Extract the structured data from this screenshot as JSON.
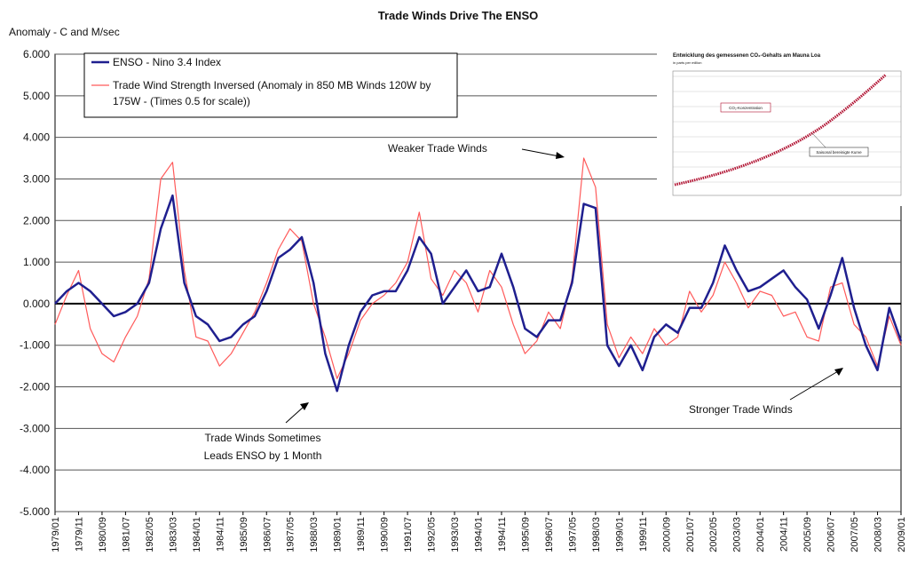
{
  "chart_data": {
    "type": "line",
    "title": "Trade Winds Drive The ENSO",
    "y_axis_label": "Anomaly - C and M/sec",
    "categories": [
      "1979/01",
      null,
      "1979/11",
      null,
      "1980/09",
      null,
      "1981/07",
      null,
      "1982/05",
      null,
      "1983/03",
      null,
      "1984/01",
      null,
      "1984/11",
      null,
      "1985/09",
      null,
      "1986/07",
      null,
      "1987/05",
      null,
      "1988/03",
      null,
      "1989/01",
      null,
      "1989/11",
      null,
      "1990/09",
      null,
      "1991/07",
      null,
      "1992/05",
      null,
      "1993/03",
      null,
      "1994/01",
      null,
      "1994/11",
      null,
      "1995/09",
      null,
      "1996/07",
      null,
      "1997/05",
      null,
      "1998/03",
      null,
      "1999/01",
      null,
      "1999/11",
      null,
      "2000/09",
      null,
      "2001/07",
      null,
      "2002/05",
      null,
      "2003/03",
      null,
      "2004/01",
      null,
      "2004/11",
      null,
      "2005/09",
      null,
      "2006/07",
      null,
      "2007/05",
      null,
      "2008/03",
      null,
      "2009/01"
    ],
    "series": [
      {
        "name": "ENSO - Nino 3.4 Index",
        "color": "#1f1f8f",
        "width": 2.5,
        "values": [
          0.0,
          0.3,
          0.5,
          0.3,
          0.0,
          -0.3,
          -0.2,
          0.0,
          0.5,
          1.8,
          2.6,
          0.5,
          -0.3,
          -0.5,
          -0.9,
          -0.8,
          -0.5,
          -0.3,
          0.3,
          1.1,
          1.3,
          1.6,
          0.5,
          -1.2,
          -2.1,
          -1.0,
          -0.2,
          0.2,
          0.3,
          0.3,
          0.8,
          1.6,
          1.2,
          0.0,
          0.4,
          0.8,
          0.3,
          0.4,
          1.2,
          0.4,
          -0.6,
          -0.8,
          -0.4,
          -0.4,
          0.5,
          2.4,
          2.3,
          -1.0,
          -1.5,
          -1.0,
          -1.6,
          -0.8,
          -0.5,
          -0.7,
          -0.1,
          -0.1,
          0.5,
          1.4,
          0.8,
          0.3,
          0.4,
          0.6,
          0.8,
          0.4,
          0.1,
          -0.6,
          0.2,
          1.1,
          -0.1,
          -1.0,
          -1.6,
          -0.1,
          -0.9
        ]
      },
      {
        "name": "Trade Wind Strength Inversed (Anomaly in 850 MB Winds 120W by 175W - (Times 0.5 for scale))",
        "color": "#ff5a5a",
        "width": 1.2,
        "values": [
          -0.5,
          0.2,
          0.8,
          -0.6,
          -1.2,
          -1.4,
          -0.8,
          -0.3,
          0.6,
          3.0,
          3.4,
          0.8,
          -0.8,
          -0.9,
          -1.5,
          -1.2,
          -0.7,
          -0.2,
          0.5,
          1.3,
          1.8,
          1.5,
          0.0,
          -0.8,
          -1.8,
          -1.2,
          -0.4,
          0.0,
          0.2,
          0.5,
          1.0,
          2.2,
          0.6,
          0.2,
          0.8,
          0.5,
          -0.2,
          0.8,
          0.4,
          -0.5,
          -1.2,
          -0.9,
          -0.2,
          -0.6,
          0.6,
          3.5,
          2.8,
          -0.5,
          -1.3,
          -0.8,
          -1.2,
          -0.6,
          -1.0,
          -0.8,
          0.3,
          -0.2,
          0.2,
          1.0,
          0.5,
          -0.1,
          0.3,
          0.2,
          -0.3,
          -0.2,
          -0.8,
          -0.9,
          0.4,
          0.5,
          -0.5,
          -0.8,
          -1.5,
          -0.3,
          -1.0
        ]
      }
    ],
    "ylim": [
      -5,
      6
    ],
    "yticks": [
      {
        "value": 6,
        "label": "6.000"
      },
      {
        "value": 5,
        "label": "5.000"
      },
      {
        "value": 4,
        "label": "4.000"
      },
      {
        "value": 3,
        "label": "3.000"
      },
      {
        "value": 2,
        "label": "2.000"
      },
      {
        "value": 1,
        "label": "1.000"
      },
      {
        "value": 0,
        "label": "0.000"
      },
      {
        "value": -1,
        "label": "-1.000"
      },
      {
        "value": -2,
        "label": "-2.000"
      },
      {
        "value": -3,
        "label": "-3.000"
      },
      {
        "value": -4,
        "label": "-4.000"
      },
      {
        "value": -5,
        "label": "-5.000"
      }
    ],
    "grid": true,
    "legend": "top-left",
    "annotations": {
      "weaker": "Weaker Trade Winds",
      "stronger": "Stronger Trade Winds",
      "leads": [
        "Trade Winds Sometimes",
        "Leads ENSO by 1 Month"
      ]
    }
  },
  "inset": {
    "title": "Entwicklung des gemessenen CO₂-Gehalts am Mauna Loa",
    "subtitle": "in parts per million",
    "label_raw": "CO₂-Konzentration",
    "label_smooth": "Saisonal bereinigte Kurve"
  }
}
